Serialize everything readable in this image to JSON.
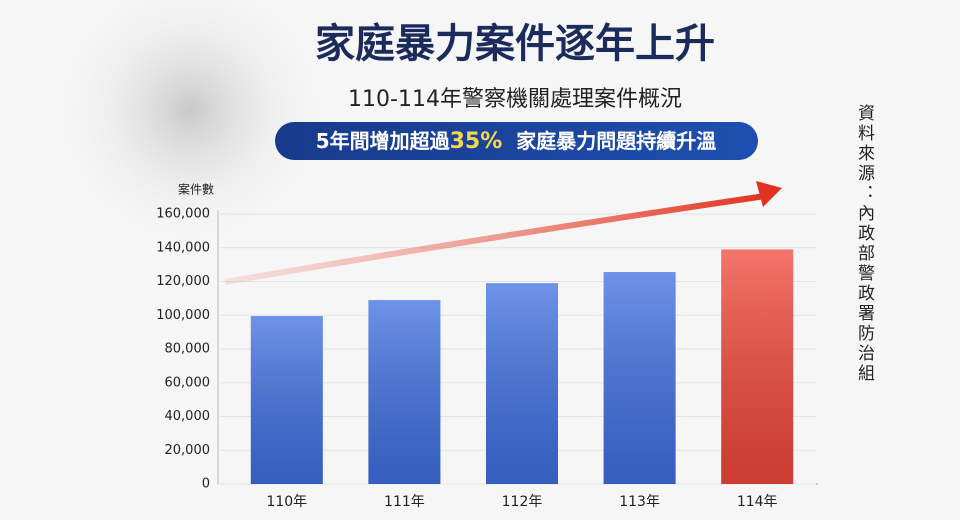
{
  "chart_data": {
    "type": "bar",
    "title": "家庭暴力案件逐年上升",
    "subtitle": "110-114年警察機關處理案件概況",
    "highlight": {
      "before": "5年間增加超過",
      "value": "35%",
      "after": "家庭暴力問題持續升溫"
    },
    "source": "資料來源：內政部警政署防治組",
    "y_label": "案件數",
    "categories": [
      "110年",
      "111年",
      "112年",
      "113年",
      "114年"
    ],
    "values": [
      99500,
      109000,
      119000,
      125600,
      139000
    ],
    "colors": [
      "#3f6fe0",
      "#3f6fe0",
      "#3f6fe0",
      "#3f6fe0",
      "#f0473a"
    ],
    "ylim": [
      0,
      160000
    ],
    "yticks": [
      0,
      {
        "value": 20000,
        "label": "20,000"
      },
      {
        "value": 40000,
        "label": "40,000"
      },
      {
        "value": 60000,
        "label": "60,000"
      },
      {
        "value": 80000,
        "label": "80,000"
      },
      {
        "value": 100000,
        "label": "100,000"
      },
      {
        "value": 120000,
        "label": "120,000"
      },
      {
        "value": 140000,
        "label": "140,000"
      },
      {
        "value": 160000,
        "label": "160,000"
      }
    ],
    "grid": true
  }
}
